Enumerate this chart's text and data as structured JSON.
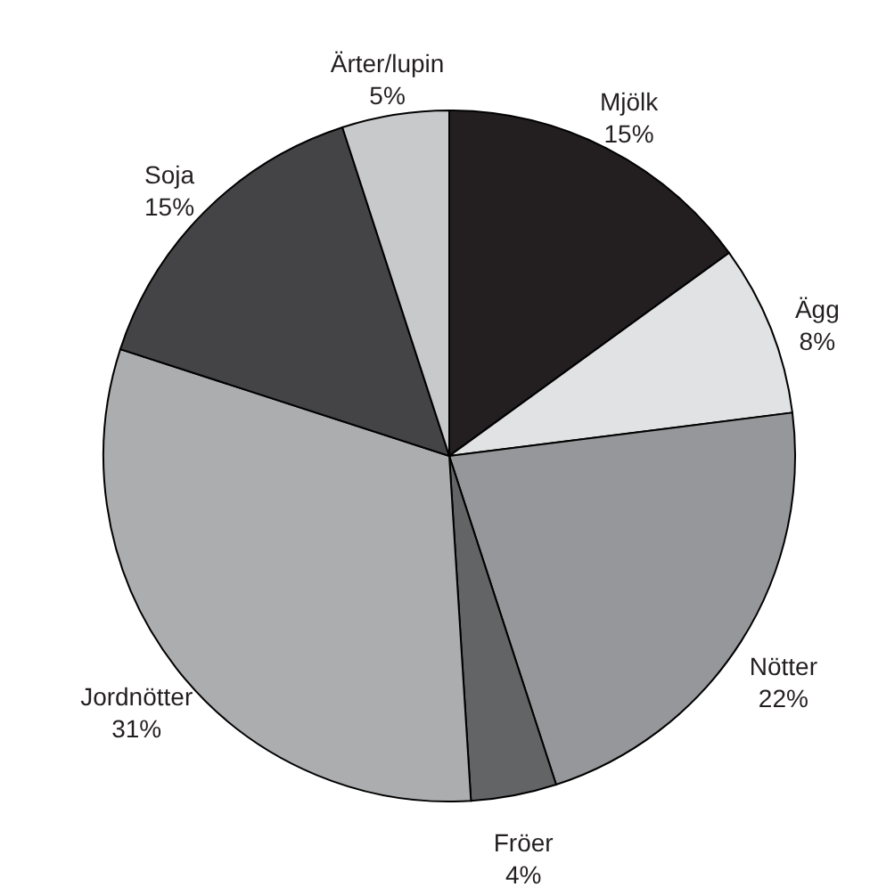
{
  "chart_data": {
    "type": "pie",
    "categories": [
      "Mjölk",
      "Ägg",
      "Nötter",
      "Fröer",
      "Jordnötter",
      "Soja",
      "Ärter/lupin"
    ],
    "values": [
      15,
      8,
      22,
      4,
      31,
      15,
      5
    ],
    "value_labels": [
      "15%",
      "8%",
      "22%",
      "4%",
      "31%",
      "15%",
      "5%"
    ],
    "colors": [
      "#231f20",
      "#e1e2e3",
      "#96979a",
      "#636466",
      "#acadaf",
      "#444446",
      "#c8c9cb"
    ]
  }
}
